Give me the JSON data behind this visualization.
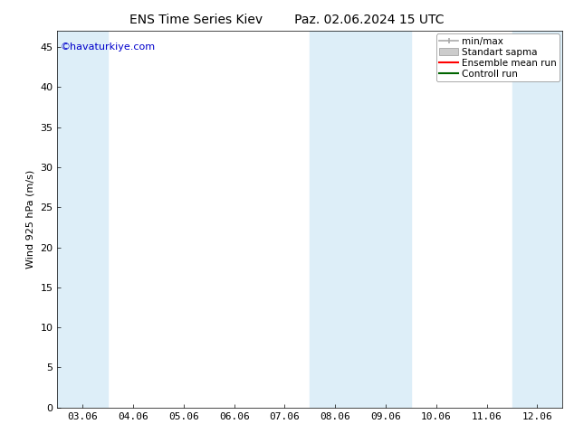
{
  "title_left": "ENS Time Series Kiev",
  "title_right": "Paz. 02.06.2024 15 UTC",
  "ylabel": "Wind 925 hPa (m/s)",
  "watermark": "©havaturkiye.com",
  "watermark_color": "#0000cc",
  "ylim": [
    0,
    47
  ],
  "yticks": [
    0,
    5,
    10,
    15,
    20,
    25,
    30,
    35,
    40,
    45
  ],
  "xtick_labels": [
    "03.06",
    "04.06",
    "05.06",
    "06.06",
    "07.06",
    "08.06",
    "09.06",
    "10.06",
    "11.06",
    "12.06"
  ],
  "shaded_indices": [
    0,
    5,
    6,
    9
  ],
  "shaded_color": "#ddeef8",
  "bg_color": "#ffffff",
  "legend_items": [
    {
      "label": "min/max",
      "color": "#aaaaaa",
      "lw": 1.2,
      "style": "minmax"
    },
    {
      "label": "Standart sapma",
      "color": "#cccccc",
      "lw": 4,
      "style": "band"
    },
    {
      "label": "Ensemble mean run",
      "color": "#ff0000",
      "lw": 1.5,
      "style": "line"
    },
    {
      "label": "Controll run",
      "color": "#006400",
      "lw": 1.5,
      "style": "line"
    }
  ],
  "title_fontsize": 10,
  "axis_label_fontsize": 8,
  "tick_fontsize": 8,
  "watermark_fontsize": 8,
  "legend_fontsize": 7.5
}
